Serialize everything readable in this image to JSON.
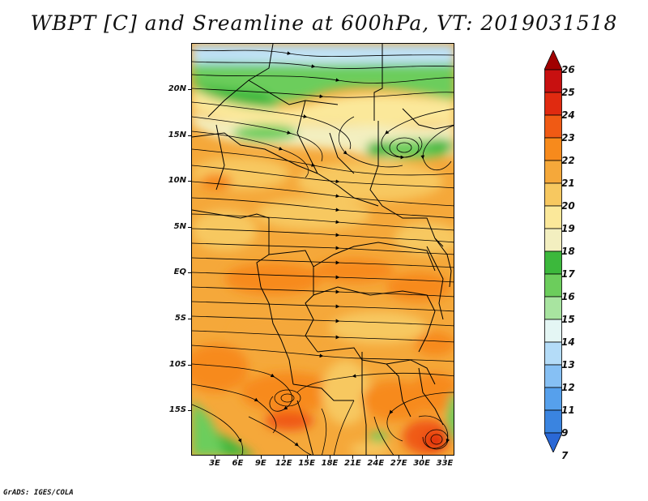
{
  "title": "WBPT [C] and Sreamline at 600hPa, VT: 2019031518",
  "credit": "GrADS: IGES/COLA",
  "map": {
    "lat_labels": [
      "20N",
      "15N",
      "10N",
      "5N",
      "EQ",
      "5S",
      "10S",
      "15S"
    ],
    "lon_labels": [
      "3E",
      "6E",
      "9E",
      "12E",
      "15E",
      "18E",
      "21E",
      "24E",
      "27E",
      "30E",
      "33E"
    ]
  },
  "colorbar": {
    "labels": [
      "26",
      "25",
      "24",
      "23",
      "22",
      "21",
      "20",
      "19",
      "18",
      "17",
      "16",
      "15",
      "14",
      "13",
      "12",
      "11",
      "9",
      "7"
    ],
    "colors": [
      "#a00000",
      "#c81010",
      "#e02a10",
      "#f05a14",
      "#f78a1c",
      "#f5a83a",
      "#f7c860",
      "#fbe89a",
      "#f3efc0",
      "#3cb83c",
      "#6ccd5c",
      "#a8e4a0",
      "#e4f6f4",
      "#b4dcf8",
      "#86c0f4",
      "#56a0ec",
      "#3a84e0",
      "#2a68d6"
    ]
  }
}
